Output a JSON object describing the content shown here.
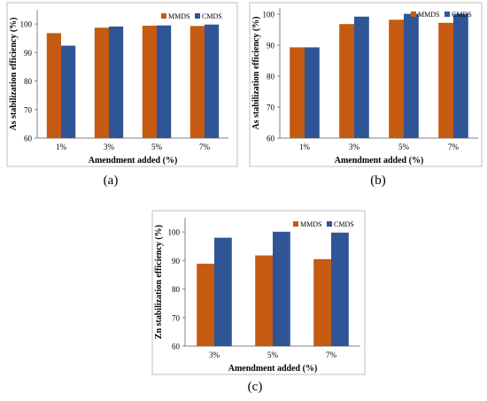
{
  "figure": {
    "captions": [
      "(a)",
      "(b)",
      "(c)"
    ]
  },
  "chart_data": [
    {
      "type": "bar",
      "categories": [
        "1%",
        "3%",
        "5%",
        "7%"
      ],
      "series": [
        {
          "name": "MMDS",
          "color": "#c55a11",
          "values": [
            96.8,
            98.7,
            99.4,
            99.3
          ]
        },
        {
          "name": "CMDS",
          "color": "#2f5597",
          "values": [
            92.4,
            99.1,
            99.5,
            99.8
          ]
        }
      ],
      "xlabel": "Amendment added (%)",
      "ylabel": "As stabilization efficiency (%)",
      "ylim": [
        60,
        105
      ],
      "yticks": [
        60,
        70,
        80,
        90,
        100
      ],
      "legend": "top-right",
      "grid": false
    },
    {
      "type": "bar",
      "categories": [
        "1%",
        "3%",
        "5%",
        "7%"
      ],
      "series": [
        {
          "name": "MMDS",
          "color": "#c55a11",
          "values": [
            89.3,
            96.8,
            98.2,
            97.2
          ]
        },
        {
          "name": "CMDS",
          "color": "#2f5597",
          "values": [
            89.3,
            99.2,
            100.1,
            100.1
          ]
        }
      ],
      "xlabel": "Amendment added (%)",
      "ylabel": "As stabilization efficiency (%)",
      "ylim": [
        60,
        102
      ],
      "yticks": [
        60,
        70,
        80,
        90,
        100
      ],
      "legend": "top-right",
      "grid": false
    },
    {
      "type": "bar",
      "categories": [
        "3%",
        "5%",
        "7%"
      ],
      "series": [
        {
          "name": "MMDS",
          "color": "#c55a11",
          "values": [
            88.9,
            91.8,
            90.5
          ]
        },
        {
          "name": "CMDS",
          "color": "#2f5597",
          "values": [
            98.0,
            100.1,
            99.8
          ]
        }
      ],
      "xlabel": "Amendment added (%)",
      "ylabel": "Zn stabilization efficiency (%)",
      "ylim": [
        60,
        105
      ],
      "yticks": [
        60,
        70,
        80,
        90,
        100
      ],
      "legend": "top-right",
      "grid": false
    }
  ]
}
